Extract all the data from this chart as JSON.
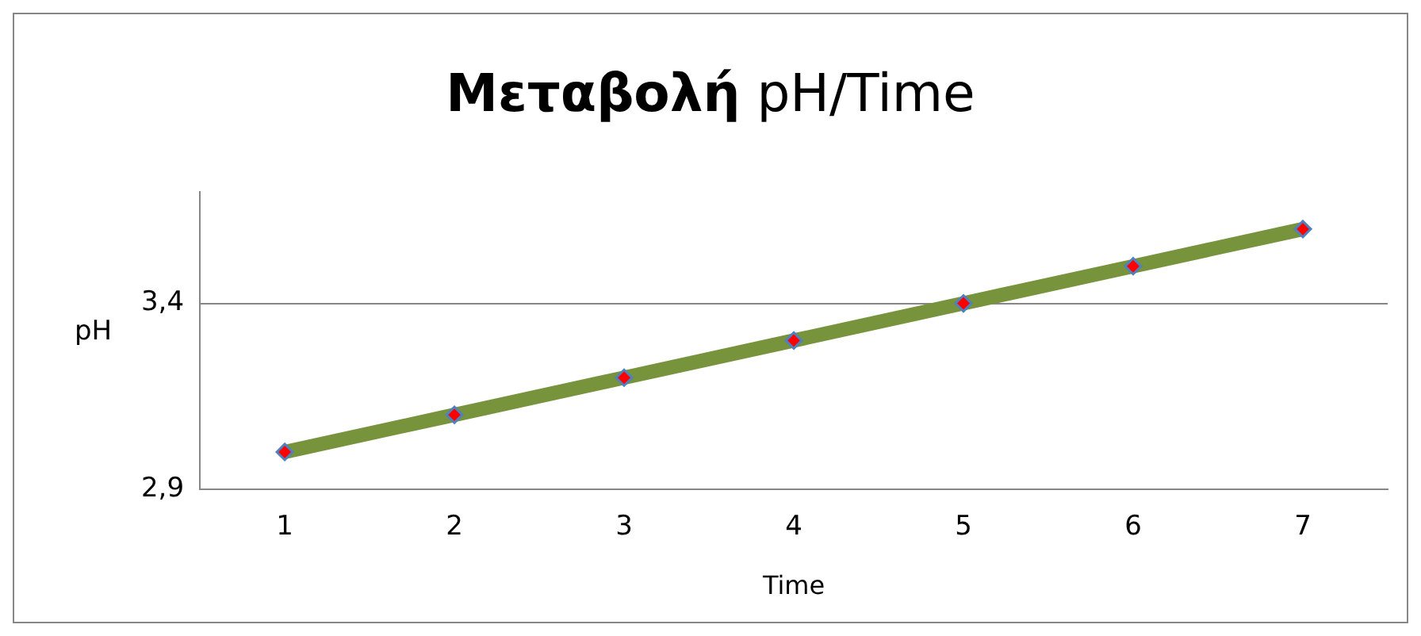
{
  "chart_data": {
    "type": "line",
    "title": "Μεταβολή pH/Time",
    "xlabel": "Time",
    "ylabel": "pH",
    "categories": [
      "1",
      "2",
      "3",
      "4",
      "5",
      "6",
      "7"
    ],
    "series": [
      {
        "color": "#77933c",
        "values": [
          3.0,
          3.1,
          3.2,
          3.3,
          3.4,
          3.5,
          3.6
        ]
      }
    ],
    "ylim": [
      2.9,
      3.7
    ],
    "yticks": [
      {
        "value": 2.9,
        "label": "2,9"
      },
      {
        "value": 3.4,
        "label": "3,4"
      }
    ],
    "grid": "y",
    "legend": false,
    "marker": "diamond",
    "line_style": "solid"
  }
}
